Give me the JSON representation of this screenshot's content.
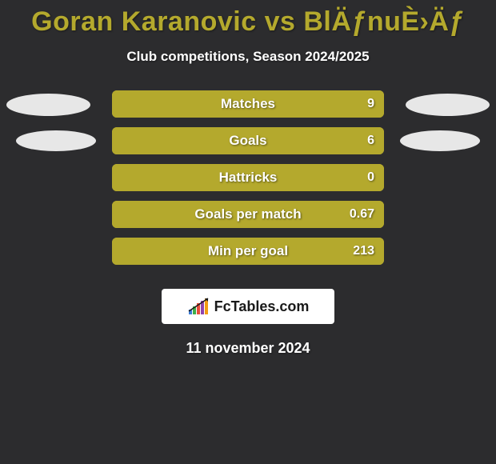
{
  "background_color": "#2c2c2e",
  "title": "Goran Karanovic vs BlÄƒnuÈ›Äƒ",
  "title_color": "#b4a92d",
  "subtitle": "Club competitions, Season 2024/2025",
  "subtitle_color": "#ffffff",
  "ellipse_color": "#e7e7e7",
  "bar_label_color": "#ffffff",
  "bar_value_color": "#ffffff",
  "rows": [
    {
      "label": "Matches",
      "value": "9",
      "fill_pct": 100,
      "fill_color": "#b4a92d",
      "track_color": "#b4a92d",
      "show_ellipses": true,
      "ellipse_size": "large"
    },
    {
      "label": "Goals",
      "value": "6",
      "fill_pct": 100,
      "fill_color": "#b4a92d",
      "track_color": "#b4a92d",
      "show_ellipses": true,
      "ellipse_size": "small"
    },
    {
      "label": "Hattricks",
      "value": "0",
      "fill_pct": 100,
      "fill_color": "#b4a92d",
      "track_color": "#b4a92d",
      "show_ellipses": false
    },
    {
      "label": "Goals per match",
      "value": "0.67",
      "fill_pct": 100,
      "fill_color": "#b4a92d",
      "track_color": "#b4a92d",
      "show_ellipses": false
    },
    {
      "label": "Min per goal",
      "value": "213",
      "fill_pct": 100,
      "fill_color": "#b4a92d",
      "track_color": "#b4a92d",
      "show_ellipses": false
    }
  ],
  "logo": {
    "box_bg": "#ffffff",
    "prefix": "Fc",
    "suffix": "Tables.com",
    "text_color": "#1a1a1a",
    "chart_color": "#1a1a1a",
    "bar_colors": [
      "#3a7bd5",
      "#3fae49",
      "#e74c3c",
      "#8e44ad",
      "#f39c12"
    ]
  },
  "date": "11 november 2024",
  "date_color": "#ffffff"
}
